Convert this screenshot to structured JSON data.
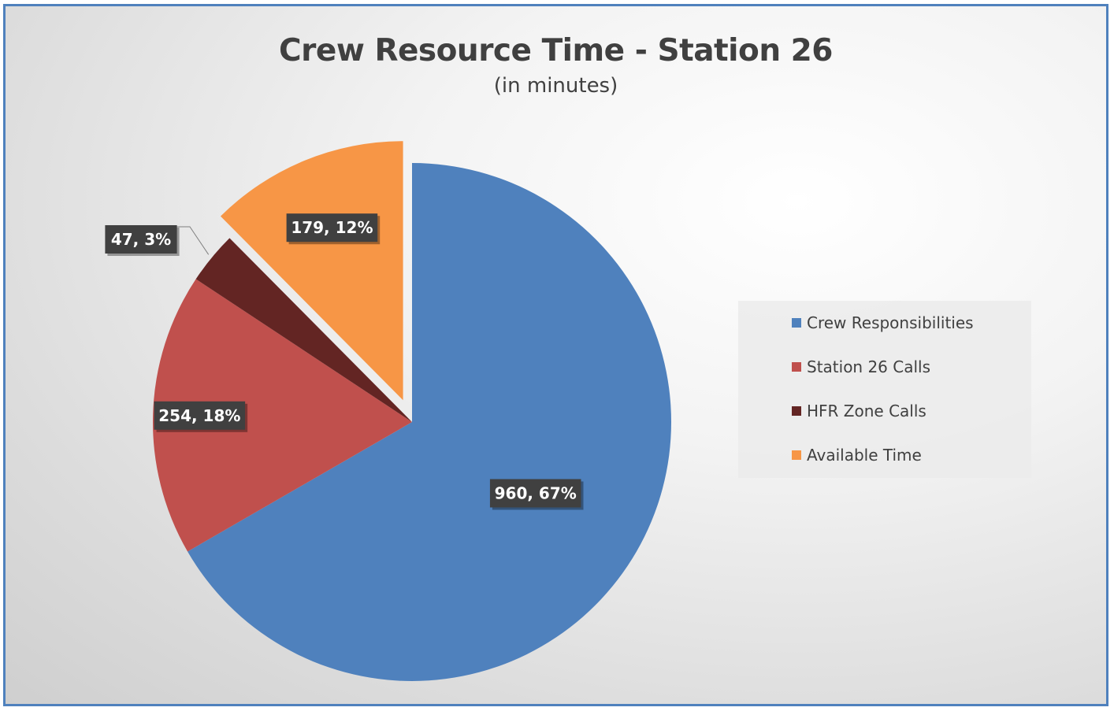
{
  "title": "Crew Resource Time - Station 26",
  "subtitle": "(in minutes)",
  "chart_data": {
    "type": "pie",
    "title": "Crew Resource Time - Station 26",
    "subtitle": "(in minutes)",
    "categories": [
      "Crew Responsibilities",
      "Station 26 Calls",
      "HFR Zone Calls",
      "Available Time"
    ],
    "values": [
      960,
      254,
      47,
      179
    ],
    "percent_labels": [
      "67%",
      "18%",
      "3%",
      "12%"
    ],
    "data_labels": [
      "960, 67%",
      "254, 18%",
      "47, 3%",
      "179, 12%"
    ],
    "colors": [
      "#4f81bd",
      "#c0504d",
      "#632523",
      "#f79646"
    ],
    "exploded": [
      false,
      false,
      false,
      true
    ],
    "legend_position": "right"
  },
  "legend": [
    {
      "label": "Crew Responsibilities",
      "color": "#4f81bd"
    },
    {
      "label": "Station 26 Calls",
      "color": "#c0504d"
    },
    {
      "label": "HFR Zone Calls",
      "color": "#632523"
    },
    {
      "label": "Available Time",
      "color": "#f79646"
    }
  ]
}
